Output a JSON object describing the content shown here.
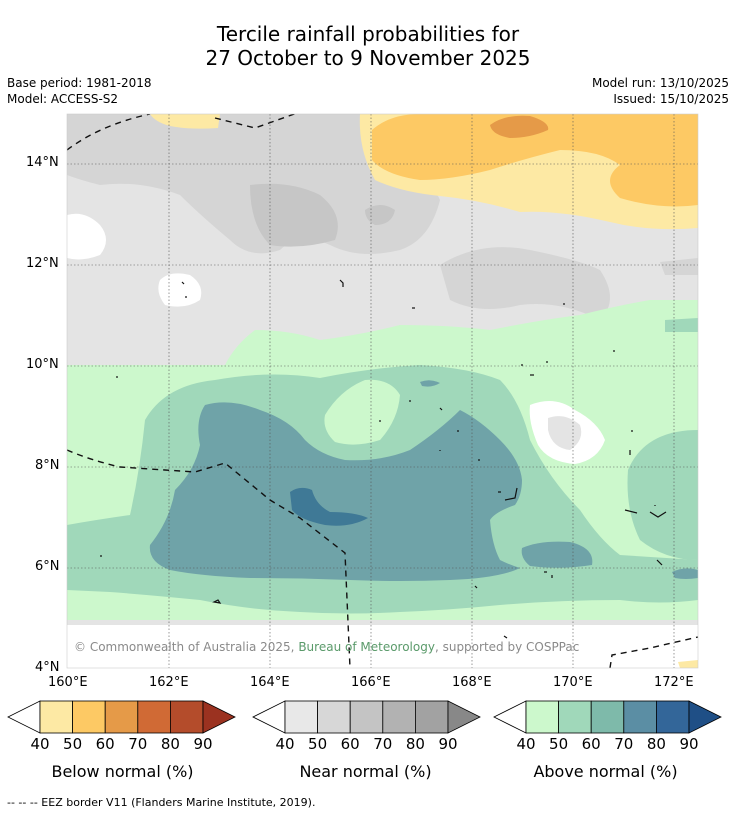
{
  "title_line1": "Tercile rainfall probabilities for",
  "title_line2": "27 October to 9 November 2025",
  "meta": {
    "base_period": "Base period: 1981-2018",
    "model": "Model: ACCESS-S2",
    "model_run": "Model run: 13/10/2025",
    "issued": "Issued: 15/10/2025"
  },
  "axes": {
    "lat_labels": [
      "14°N",
      "12°N",
      "10°N",
      "8°N",
      "6°N",
      "4°N"
    ],
    "lon_labels": [
      "160°E",
      "162°E",
      "164°E",
      "166°E",
      "168°E",
      "170°E",
      "172°E"
    ]
  },
  "copyright": {
    "prefix": "© Commonwealth of Australia 2025, ",
    "link": "Bureau of Meteorology",
    "suffix": ", supported by COSPPac"
  },
  "legends": [
    {
      "label": "Below normal (%)",
      "ticks": [
        "40",
        "50",
        "60",
        "70",
        "80",
        "90"
      ],
      "colors": [
        "#fde9a4",
        "#fdc964",
        "#e59a48",
        "#d06a35",
        "#b44c2b"
      ],
      "low": "#ffffff",
      "high": "#9b3220"
    },
    {
      "label": "Near normal (%)",
      "ticks": [
        "40",
        "50",
        "60",
        "70",
        "80",
        "90"
      ],
      "colors": [
        "#e8e8e8",
        "#d7d7d7",
        "#c4c4c4",
        "#b2b2b2",
        "#a2a2a2"
      ],
      "low": "#ffffff",
      "high": "#888888"
    },
    {
      "label": "Above normal (%)",
      "ticks": [
        "40",
        "50",
        "60",
        "70",
        "80",
        "90"
      ],
      "colors": [
        "#ccf8cc",
        "#a0d8ba",
        "#7ebaaa",
        "#5b8ea4",
        "#336699"
      ],
      "low": "#ffffff",
      "high": "#1f4f86"
    }
  ],
  "footnote": "--  --  -- EEZ border V11 (Flanders Marine Institute, 2019)."
}
